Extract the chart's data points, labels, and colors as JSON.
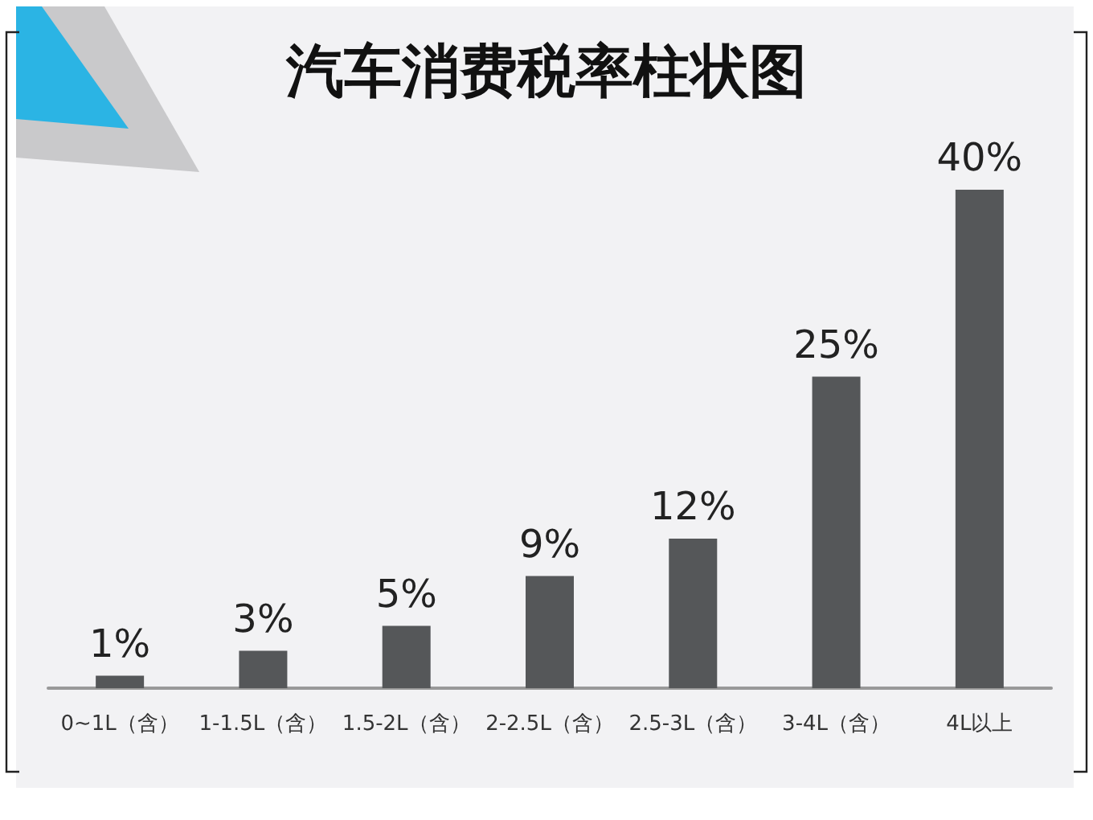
{
  "chart_data": {
    "type": "bar",
    "title": "汽车消费税率柱状图",
    "categories": [
      "0~1L（含）",
      "1-1.5L（含）",
      "1.5-2L（含）",
      "2-2.5L（含）",
      "2.5-3L（含）",
      "3-4L（含）",
      "4L以上"
    ],
    "values": [
      1,
      3,
      5,
      9,
      12,
      25,
      40
    ],
    "color": "#555759",
    "value_labels": [
      "1%",
      "3%",
      "5%",
      "9%",
      "12%",
      "25%",
      "40%"
    ]
  }
}
